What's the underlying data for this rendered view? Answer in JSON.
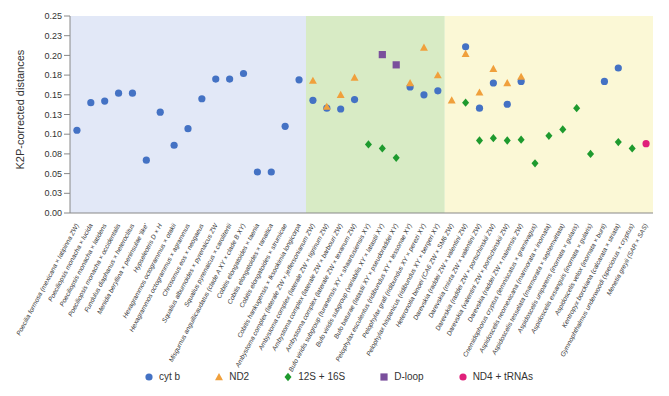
{
  "chart_data": {
    "type": "scatter",
    "y_label": "K2P-corrected distances",
    "categories": [
      "Poecilia formosa (mexicana × latipinna ZW)",
      "Poeciliopsis monacha × lucida",
      "Poeciliopsis monacha × latidens",
      "Poeciliopsis monacha × occidentalis",
      "Fundulus diaphanus × heteroclitus",
      "Menidia beryllina × peninsulae 'like'",
      "Hypseleotris D × H",
      "Hexagrammos octogrammus × otakii",
      "Hexagrammos octogrammus × agrammus",
      "Chrosomus eos × neogaeus",
      "Squalius alburnoides × pyrenaicus ZW",
      "Squalius pyrenaicus × carolitertii",
      "Misgurnus anguillicaudatus (clade A XY × clade B XY)",
      "Cobitis elongatoides × taenia",
      "Cobitis elongatoides × tanaitica",
      "Cobitis elongatoides × strumicae",
      "Cobitis hankugensis × Iksookimia longicorpa",
      "Ambystoma complex (laterale ZW × jeffersonianum ZW)",
      "Ambystoma complex (laterale ZW × tigrinum ZW)",
      "Ambystoma complex (laterale ZW × barbouri ZW)",
      "Ambystoma complex (laterale ZW × texanum ZW)",
      "Bufo viridis subgroup (turanensis XY × shaartusiensis XY)",
      "Bufo viridis subgroup (variabilis XY × latastii XY)",
      "Bufo baturae (latastii XY × pseudoraddei XY)",
      "Pelophylax esculentus (ridibundus XY × lessonae XY)",
      "Pelophylax grafi (ridibundus XY × perezi XY)",
      "Pelophylax hispanicus (ridibundus XY × bergeri XY)",
      "Heteronotia binoei (CA6 ZW × SM6 ZW)",
      "Darevskia (raddei ZW × valentini ZW)",
      "Darevskia (mixta ZW × valentini ZW)",
      "Darevskia (raddei ZW × portschinskii ZW)",
      "Darevskia (valentini ZW × portschinskii ZW)",
      "Darevskia (raddei ZW × nairensis ZW)",
      "Cnemidophorus cryptus (lemniscatus × gramivagus)",
      "Aspidoscelis neomexicana (marmorata × inornata)",
      "Aspidoscelis tesselata (marmorata × septemvittata)",
      "Aspidoscelis uniparens (inornata × gularis)",
      "Aspidoscelis exsanguis (inornata × gularis)",
      "Aspidoscelis velox (inornata × burti)",
      "Kentropyx borckiana (calcarata × striata)",
      "Gymnophthalmus underwoodi (speciosus × cryptus)",
      "Menetia greyii (SAR × SAS)"
    ],
    "series": [
      {
        "name": "cyt b",
        "color": "#4472c4",
        "marker": "circle",
        "values": [
          0.105,
          0.14,
          0.142,
          0.152,
          0.152,
          0.067,
          0.128,
          0.086,
          0.107,
          0.145,
          0.17,
          0.17,
          0.177,
          0.052,
          0.052,
          0.11,
          0.169,
          0.143,
          0.133,
          0.132,
          0.144,
          null,
          null,
          null,
          0.16,
          0.15,
          0.155,
          null,
          0.211,
          0.133,
          0.165,
          0.138,
          0.167,
          null,
          null,
          null,
          null,
          null,
          0.167,
          0.184,
          null,
          null
        ]
      },
      {
        "name": "ND2",
        "color": "#f0a03c",
        "marker": "triangle",
        "values": [
          null,
          null,
          null,
          null,
          null,
          null,
          null,
          null,
          null,
          null,
          null,
          null,
          null,
          null,
          null,
          null,
          null,
          0.168,
          0.135,
          0.15,
          0.172,
          null,
          null,
          null,
          0.165,
          0.21,
          0.175,
          0.143,
          0.202,
          0.153,
          0.183,
          0.165,
          0.173,
          null,
          null,
          null,
          null,
          null,
          null,
          null,
          null,
          null
        ]
      },
      {
        "name": "12S + 16S",
        "color": "#1e9a2e",
        "marker": "diamond",
        "values": [
          null,
          null,
          null,
          null,
          null,
          null,
          null,
          null,
          null,
          null,
          null,
          null,
          null,
          null,
          null,
          null,
          null,
          null,
          null,
          null,
          null,
          0.087,
          0.082,
          0.07,
          null,
          null,
          null,
          null,
          0.14,
          0.092,
          0.095,
          0.092,
          0.093,
          0.063,
          0.098,
          0.106,
          0.133,
          0.075,
          null,
          0.09,
          0.082,
          null
        ]
      },
      {
        "name": "D-loop",
        "color": "#7a4f9c",
        "marker": "square",
        "values": [
          null,
          null,
          null,
          null,
          null,
          null,
          null,
          null,
          null,
          null,
          null,
          null,
          null,
          null,
          null,
          null,
          null,
          null,
          null,
          null,
          null,
          null,
          0.201,
          0.188,
          null,
          null,
          null,
          null,
          null,
          null,
          null,
          null,
          null,
          null,
          null,
          null,
          null,
          null,
          null,
          null,
          null,
          null
        ]
      },
      {
        "name": "ND4 + tRNAs",
        "color": "#e0207a",
        "marker": "circle",
        "values": [
          null,
          null,
          null,
          null,
          null,
          null,
          null,
          null,
          null,
          null,
          null,
          null,
          null,
          null,
          null,
          null,
          null,
          null,
          null,
          null,
          null,
          null,
          null,
          null,
          null,
          null,
          null,
          null,
          null,
          null,
          null,
          null,
          null,
          null,
          null,
          null,
          null,
          null,
          null,
          null,
          null,
          0.088
        ]
      }
    ],
    "ylim": [
      0,
      0.25
    ],
    "yticks": [
      {
        "value": 0,
        "label": "0.00"
      },
      {
        "value": 0.025,
        "label": "0.03"
      },
      {
        "value": 0.05,
        "label": "0.05"
      },
      {
        "value": 0.075,
        "label": "0.08"
      },
      {
        "value": 0.1,
        "label": "0.10"
      },
      {
        "value": 0.125,
        "label": "0.13"
      },
      {
        "value": 0.15,
        "label": "0.15"
      },
      {
        "value": 0.175,
        "label": "0.18"
      },
      {
        "value": 0.2,
        "label": "0.20"
      },
      {
        "value": 0.225,
        "label": "0.23"
      },
      {
        "value": 0.25,
        "label": "0.25"
      }
    ],
    "grid": false,
    "legend": "bottom"
  }
}
